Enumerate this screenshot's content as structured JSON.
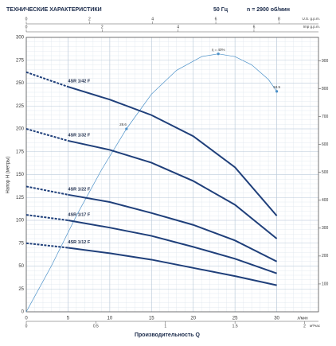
{
  "chart_data": {
    "type": "line",
    "title": "ТЕХНИЧЕСКИЕ ХАРАКТЕРИСТИКИ",
    "frequency": "50 Гц",
    "speed": "n = 2900 об/мин",
    "y_label": "Напор H (метры)",
    "x_label": "Производительность Q",
    "x_unit": "л/мин",
    "xlim": [
      0,
      35
    ],
    "xticks": [
      0,
      5,
      10,
      15,
      20,
      25,
      30
    ],
    "ylim": [
      0,
      300
    ],
    "yticks": [
      0,
      25,
      50,
      75,
      100,
      125,
      150,
      175,
      200,
      225,
      250,
      275,
      300
    ],
    "y2lim": [
      0,
      984
    ],
    "y2ticks": [
      100,
      200,
      300,
      400,
      500,
      600,
      700,
      800,
      900
    ],
    "x2": {
      "label": "м³/час",
      "lim": [
        0,
        2.1
      ],
      "ticks": [
        0,
        0.5,
        1,
        1.5,
        2
      ]
    },
    "x3": {
      "label": "U.S. g.p.m.",
      "lim": [
        0,
        9.25
      ],
      "ticks": [
        0,
        2,
        4,
        6,
        8
      ]
    },
    "x4": {
      "label": "Imp g.p.m.",
      "lim": [
        0,
        7.7
      ],
      "ticks": [
        0,
        2,
        4,
        6
      ]
    },
    "grid": true,
    "dashed_below_x": 5,
    "x": [
      0,
      5,
      10,
      15,
      20,
      25,
      30
    ],
    "series": [
      {
        "name": "4SR 1/42 F",
        "color": "#1f3f7a",
        "values": [
          262,
          246,
          232,
          215,
          192,
          158,
          105
        ]
      },
      {
        "name": "4SR 1/32 F",
        "color": "#1f3f7a",
        "values": [
          200,
          187,
          177,
          163,
          143,
          117,
          80
        ]
      },
      {
        "name": "4SR 1/22 F",
        "color": "#1f3f7a",
        "values": [
          137,
          128,
          120,
          108,
          95,
          78,
          55
        ]
      },
      {
        "name": "4SR 1/17 F",
        "color": "#1f3f7a",
        "values": [
          106,
          100,
          92,
          83,
          71,
          58,
          42
        ]
      },
      {
        "name": "4SR 1/12 F",
        "color": "#1f3f7a",
        "values": [
          75,
          70,
          64,
          57,
          48,
          39,
          29
        ]
      }
    ],
    "efficiency": {
      "color": "#4a90c8",
      "x": [
        0,
        3,
        6,
        9,
        12,
        15,
        18,
        21,
        23,
        25,
        27,
        29,
        30
      ],
      "values": [
        0,
        50,
        105,
        155,
        200,
        238,
        264,
        279,
        282,
        279,
        270,
        254,
        241
      ]
    },
    "efficiency_points": {
      "x": [
        12,
        23,
        30
      ],
      "values": [
        200,
        282,
        241
      ],
      "labels": [
        "28.6",
        "η = 40%",
        "34.5"
      ]
    }
  }
}
